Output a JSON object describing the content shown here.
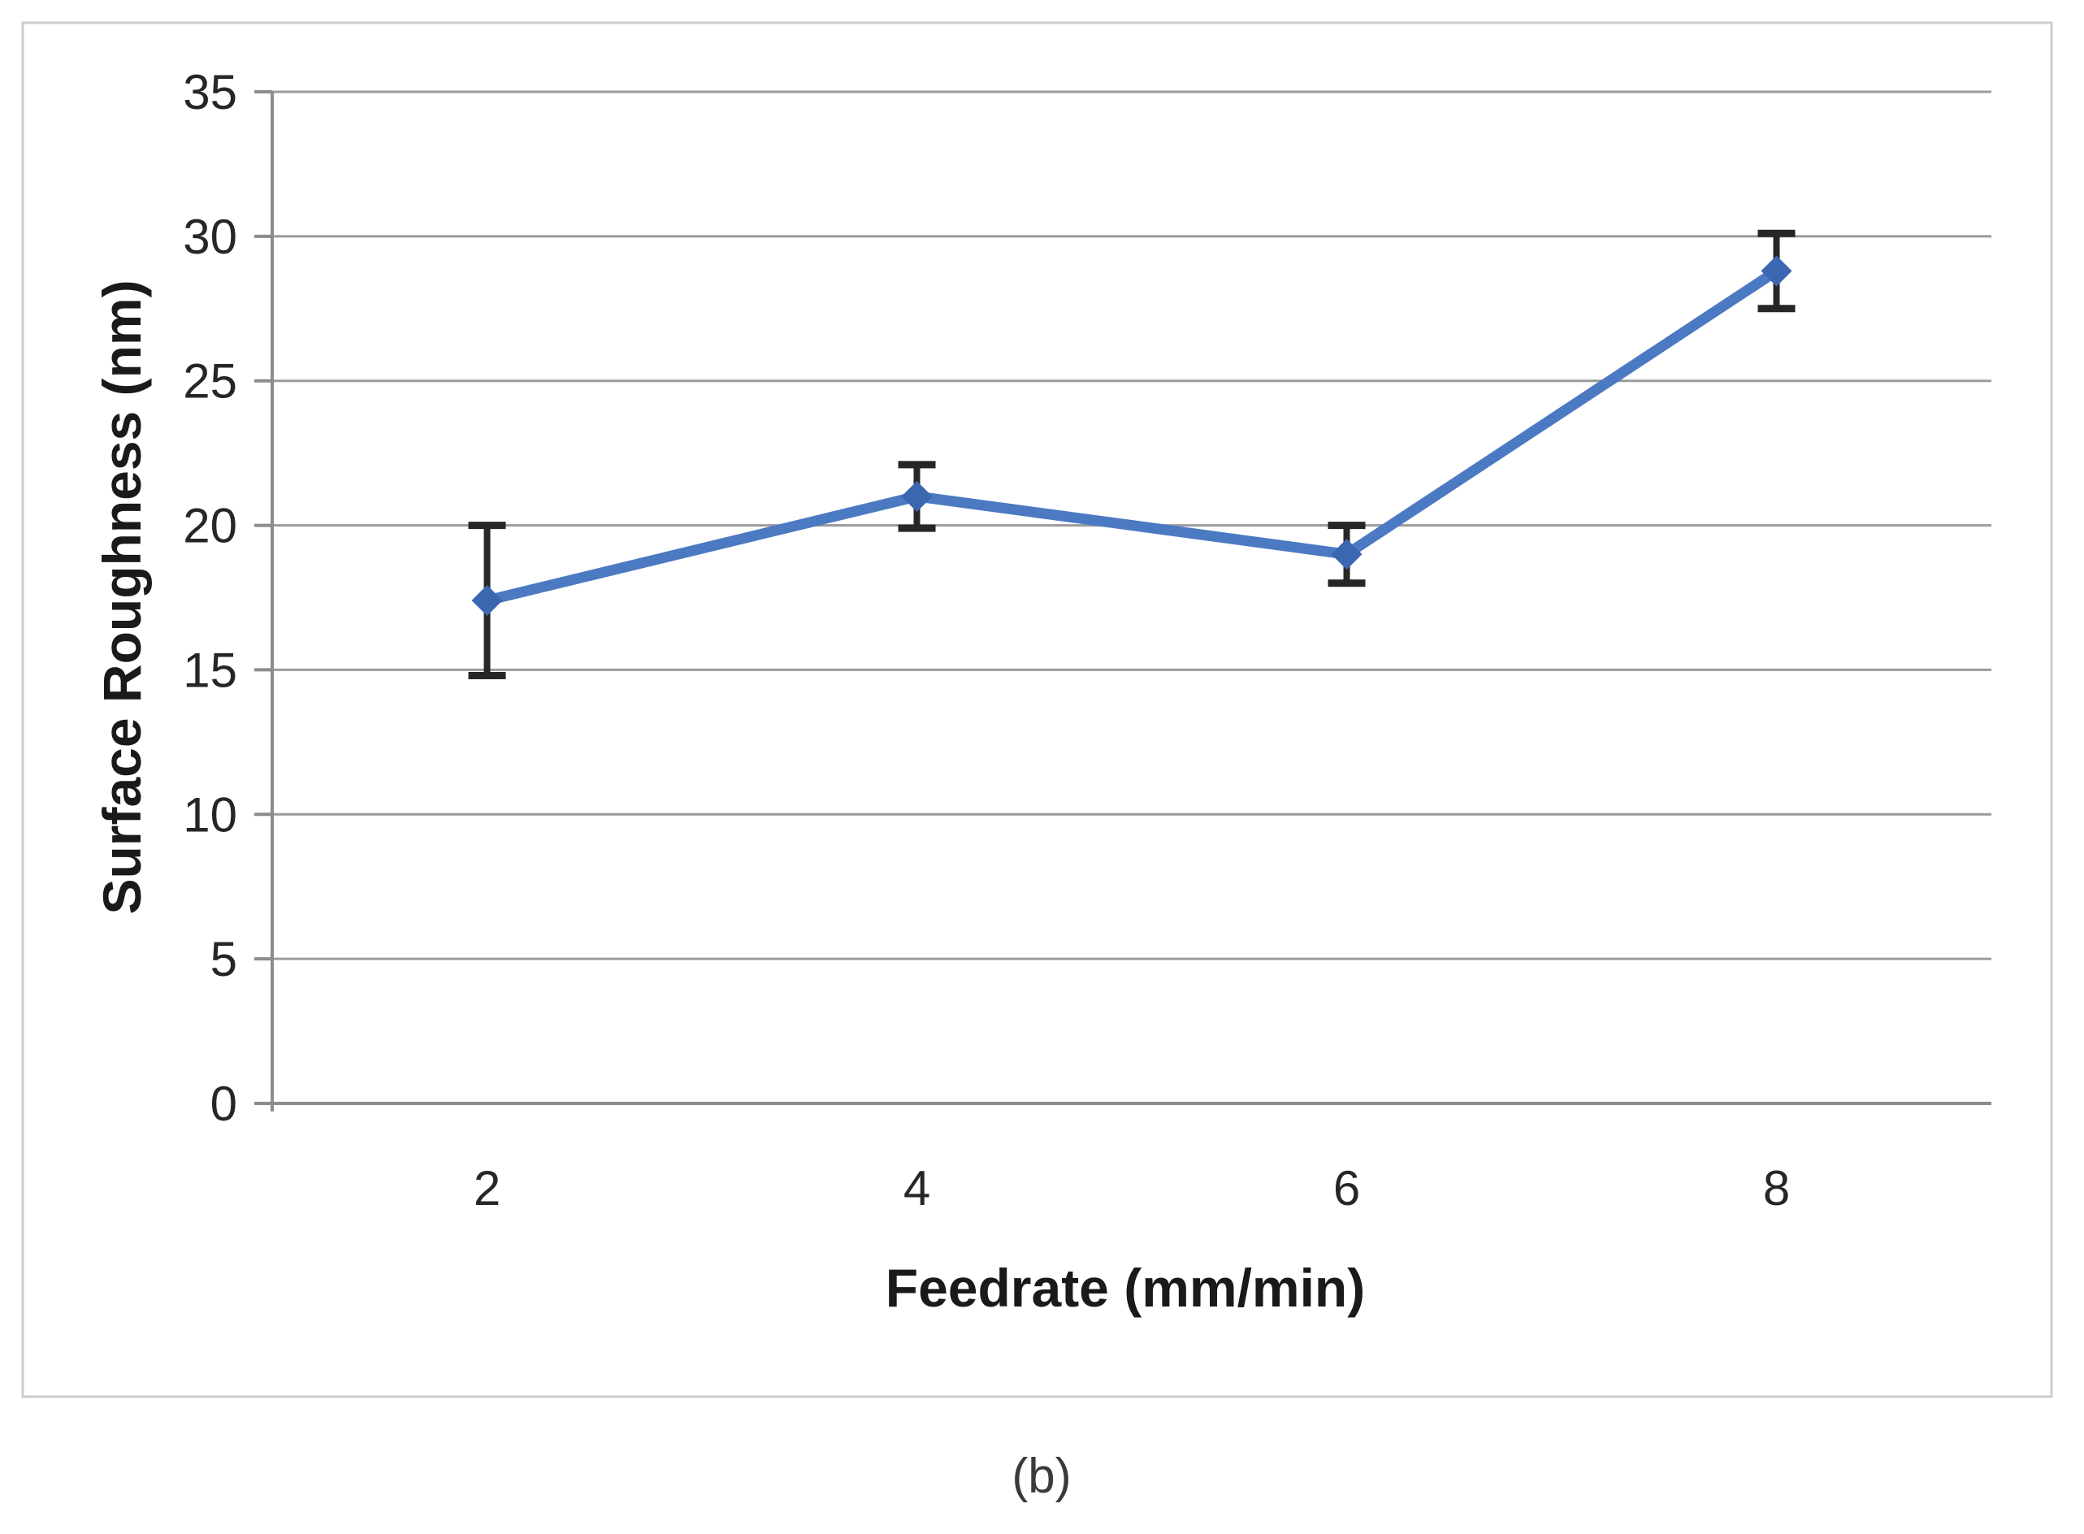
{
  "figure": {
    "caption": "(b)"
  },
  "chart_data": {
    "type": "line",
    "title": "",
    "xlabel": "Feedrate (mm/min)",
    "ylabel": "Surface Roughness (nm)",
    "categories": [
      "2",
      "4",
      "6",
      "8"
    ],
    "series": [
      {
        "name": "Surface Roughness",
        "values": [
          17.4,
          21.0,
          19.0,
          28.8
        ],
        "y_errors": [
          2.6,
          1.1,
          1.0,
          1.3
        ]
      }
    ],
    "ylim": [
      0,
      35
    ],
    "yticks": [
      0,
      5,
      10,
      15,
      20,
      25,
      30,
      35
    ],
    "ytick_step": 5,
    "grid": "horizontal-only",
    "legend": "none",
    "error_bars": true,
    "marker": "diamond",
    "colors": {
      "line": "#4b79c2",
      "marker": "#3b67b0",
      "error_bar": "#262626",
      "gridline": "#9b9b9b",
      "axis": "#8c8c8c",
      "text": "#262626",
      "chart_border": "#cccccc",
      "background": "#ffffff"
    }
  }
}
